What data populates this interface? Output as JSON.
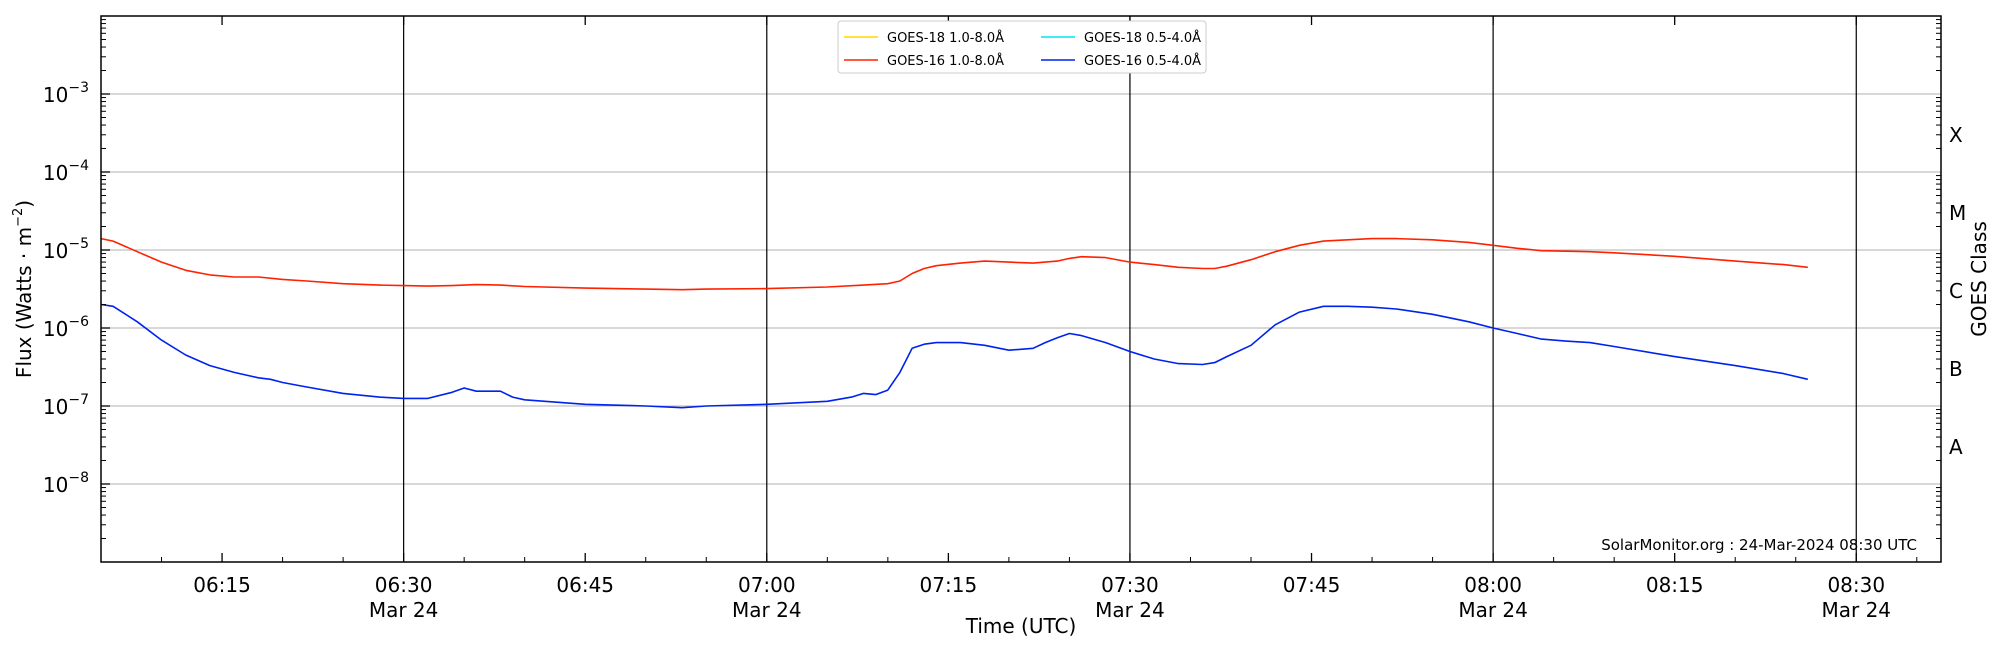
{
  "chart_data": {
    "type": "line",
    "title": "",
    "xlabel": "Time (UTC)",
    "ylabel": "Flux (Watts · m",
    "ylabel_sup": "−2",
    "ylabel_close": ")",
    "right_label": "GOES Class",
    "yscale": "log",
    "ylim": [
      1e-09,
      0.01
    ],
    "xlim": [
      "06:05",
      "08:37"
    ],
    "grid": true,
    "legend_position": "top-center",
    "credit": "SolarMonitor.org : 24-Mar-2024 08:30 UTC",
    "y_ticks": [
      {
        "value": 1e-08,
        "base": "10",
        "exp": "−8"
      },
      {
        "value": 1e-07,
        "base": "10",
        "exp": "−7"
      },
      {
        "value": 1e-06,
        "base": "10",
        "exp": "−6"
      },
      {
        "value": 1e-05,
        "base": "10",
        "exp": "−5"
      },
      {
        "value": 0.0001,
        "base": "10",
        "exp": "−4"
      },
      {
        "value": 0.001,
        "base": "10",
        "exp": "−3"
      }
    ],
    "x_ticks": [
      {
        "time": "06:15",
        "label": "06:15",
        "date": ""
      },
      {
        "time": "06:30",
        "label": "06:30",
        "date": "Mar 24"
      },
      {
        "time": "06:45",
        "label": "06:45",
        "date": ""
      },
      {
        "time": "07:00",
        "label": "07:00",
        "date": "Mar 24"
      },
      {
        "time": "07:15",
        "label": "07:15",
        "date": ""
      },
      {
        "time": "07:30",
        "label": "07:30",
        "date": "Mar 24"
      },
      {
        "time": "07:45",
        "label": "07:45",
        "date": ""
      },
      {
        "time": "08:00",
        "label": "08:00",
        "date": "Mar 24"
      },
      {
        "time": "08:15",
        "label": "08:15",
        "date": ""
      },
      {
        "time": "08:30",
        "label": "08:30",
        "date": "Mar 24"
      }
    ],
    "class_bands": [
      {
        "label": "A",
        "value": 3e-08
      },
      {
        "label": "B",
        "value": 3e-07
      },
      {
        "label": "C",
        "value": 3e-06
      },
      {
        "label": "M",
        "value": 3e-05
      },
      {
        "label": "X",
        "value": 0.0003
      }
    ],
    "series": [
      {
        "name": "GOES-18 1.0-8.0Å",
        "color": "#ffd700",
        "x": [],
        "y": []
      },
      {
        "name": "GOES-18 0.5-4.0Å",
        "color": "#00e5ee",
        "x": [],
        "y": []
      },
      {
        "name": "GOES-16 1.0-8.0Å",
        "color": "#ff2200",
        "x": [
          "06:05",
          "06:06",
          "06:08",
          "06:10",
          "06:12",
          "06:14",
          "06:16",
          "06:18",
          "06:20",
          "06:22",
          "06:25",
          "06:28",
          "06:30",
          "06:32",
          "06:34",
          "06:36",
          "06:38",
          "06:40",
          "06:45",
          "06:50",
          "06:53",
          "06:55",
          "07:00",
          "07:05",
          "07:08",
          "07:10",
          "07:11",
          "07:12",
          "07:13",
          "07:14",
          "07:16",
          "07:18",
          "07:20",
          "07:22",
          "07:24",
          "07:25",
          "07:26",
          "07:28",
          "07:30",
          "07:32",
          "07:34",
          "07:36",
          "07:37",
          "07:38",
          "07:40",
          "07:42",
          "07:44",
          "07:46",
          "07:48",
          "07:50",
          "07:52",
          "07:55",
          "07:58",
          "08:00",
          "08:02",
          "08:04",
          "08:08",
          "08:10",
          "08:15",
          "08:20",
          "08:24",
          "08:26"
        ],
        "y": [
          1.4e-05,
          1.3e-05,
          9.5e-06,
          7e-06,
          5.5e-06,
          4.8e-06,
          4.5e-06,
          4.5e-06,
          4.2e-06,
          4e-06,
          3.7e-06,
          3.55e-06,
          3.5e-06,
          3.45e-06,
          3.5e-06,
          3.6e-06,
          3.55e-06,
          3.4e-06,
          3.25e-06,
          3.15e-06,
          3.1e-06,
          3.15e-06,
          3.2e-06,
          3.35e-06,
          3.55e-06,
          3.7e-06,
          4e-06,
          5e-06,
          5.8e-06,
          6.3e-06,
          6.8e-06,
          7.2e-06,
          7e-06,
          6.8e-06,
          7.2e-06,
          7.8e-06,
          8.2e-06,
          8e-06,
          7e-06,
          6.5e-06,
          6e-06,
          5.8e-06,
          5.8e-06,
          6.2e-06,
          7.5e-06,
          9.5e-06,
          1.15e-05,
          1.3e-05,
          1.35e-05,
          1.4e-05,
          1.4e-05,
          1.35e-05,
          1.25e-05,
          1.15e-05,
          1.05e-05,
          9.8e-06,
          9.5e-06,
          9.2e-06,
          8.3e-06,
          7.2e-06,
          6.5e-06,
          6e-06
        ]
      },
      {
        "name": "GOES-16 0.5-4.0Å",
        "color": "#0022ee",
        "x": [
          "06:05",
          "06:06",
          "06:08",
          "06:10",
          "06:12",
          "06:14",
          "06:16",
          "06:18",
          "06:19",
          "06:20",
          "06:22",
          "06:25",
          "06:28",
          "06:30",
          "06:32",
          "06:34",
          "06:35",
          "06:36",
          "06:38",
          "06:39",
          "06:40",
          "06:45",
          "06:50",
          "06:53",
          "06:55",
          "07:00",
          "07:05",
          "07:07",
          "07:08",
          "07:09",
          "07:10",
          "07:11",
          "07:12",
          "07:13",
          "07:14",
          "07:16",
          "07:18",
          "07:20",
          "07:22",
          "07:23",
          "07:24",
          "07:25",
          "07:26",
          "07:28",
          "07:30",
          "07:32",
          "07:34",
          "07:36",
          "07:37",
          "07:38",
          "07:40",
          "07:42",
          "07:44",
          "07:46",
          "07:48",
          "07:50",
          "07:52",
          "07:55",
          "07:58",
          "08:00",
          "08:02",
          "08:04",
          "08:06",
          "08:08",
          "08:10",
          "08:15",
          "08:20",
          "08:24",
          "08:26"
        ],
        "y": [
          2e-06,
          1.9e-06,
          1.2e-06,
          7e-07,
          4.5e-07,
          3.3e-07,
          2.7e-07,
          2.3e-07,
          2.2e-07,
          2e-07,
          1.75e-07,
          1.45e-07,
          1.3e-07,
          1.25e-07,
          1.25e-07,
          1.5e-07,
          1.7e-07,
          1.55e-07,
          1.55e-07,
          1.3e-07,
          1.2e-07,
          1.05e-07,
          1e-07,
          9.5e-08,
          1e-07,
          1.05e-07,
          1.15e-07,
          1.3e-07,
          1.45e-07,
          1.4e-07,
          1.6e-07,
          2.7e-07,
          5.5e-07,
          6.2e-07,
          6.5e-07,
          6.5e-07,
          6e-07,
          5.2e-07,
          5.5e-07,
          6.5e-07,
          7.5e-07,
          8.5e-07,
          8e-07,
          6.5e-07,
          5e-07,
          4e-07,
          3.5e-07,
          3.4e-07,
          3.6e-07,
          4.3e-07,
          6e-07,
          1.1e-06,
          1.6e-06,
          1.9e-06,
          1.9e-06,
          1.85e-06,
          1.75e-06,
          1.5e-06,
          1.2e-06,
          1e-06,
          8.5e-07,
          7.2e-07,
          6.8e-07,
          6.5e-07,
          5.8e-07,
          4.3e-07,
          3.3e-07,
          2.6e-07,
          2.2e-07
        ]
      }
    ],
    "legend_order": [
      0,
      2,
      1,
      3
    ]
  }
}
